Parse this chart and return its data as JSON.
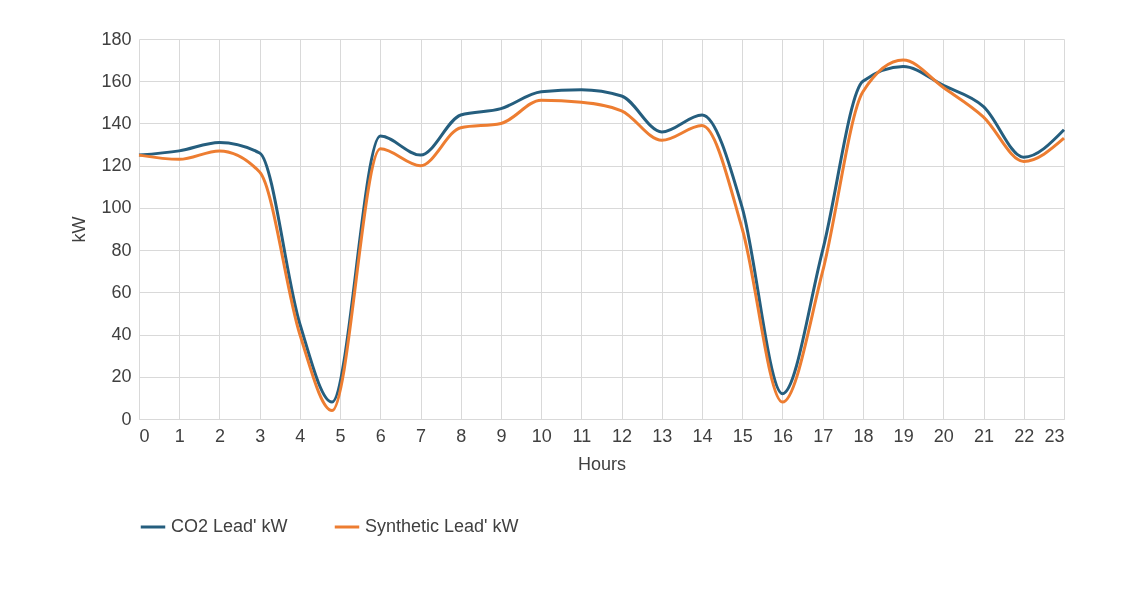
{
  "chart_data": {
    "type": "line",
    "xlabel": "Hours",
    "ylabel": "kW",
    "xlim": [
      0,
      23
    ],
    "xticks": [
      0,
      1,
      2,
      3,
      4,
      5,
      6,
      7,
      8,
      9,
      10,
      11,
      12,
      13,
      14,
      15,
      16,
      17,
      18,
      19,
      20,
      21,
      22,
      23
    ],
    "ylim": [
      0,
      180
    ],
    "yticks": [
      0,
      20,
      40,
      60,
      80,
      100,
      120,
      140,
      160,
      180
    ],
    "grid": true,
    "legend": "bottom",
    "marker": "none",
    "line_style": "solid",
    "series": [
      {
        "name": "CO2 Lead' kW",
        "color": "#255e7e",
        "x": [
          0,
          1,
          2,
          3,
          4,
          4.8,
          6,
          7,
          8,
          9,
          10,
          11,
          12,
          13,
          14,
          15,
          16,
          17,
          18,
          19,
          20,
          21,
          22,
          23
        ],
        "values": [
          125,
          127,
          131,
          126,
          45,
          8,
          134,
          125,
          144,
          147,
          155,
          156,
          153,
          136,
          144,
          100,
          12,
          80,
          160,
          167,
          158,
          148,
          124,
          137
        ]
      },
      {
        "name": "Synthetic Lead' kW",
        "color": "#ed7d31",
        "x": [
          0,
          1,
          2,
          3,
          4,
          4.8,
          6,
          7,
          8,
          9,
          10,
          11,
          12,
          13,
          14,
          15,
          16,
          17,
          18,
          19,
          20,
          21,
          22,
          23
        ],
        "values": [
          125,
          123,
          127,
          117,
          40,
          4,
          128,
          120,
          138,
          140,
          151,
          150,
          146,
          132,
          139,
          90,
          8,
          70,
          155,
          170,
          157,
          143,
          122,
          133
        ]
      }
    ]
  }
}
